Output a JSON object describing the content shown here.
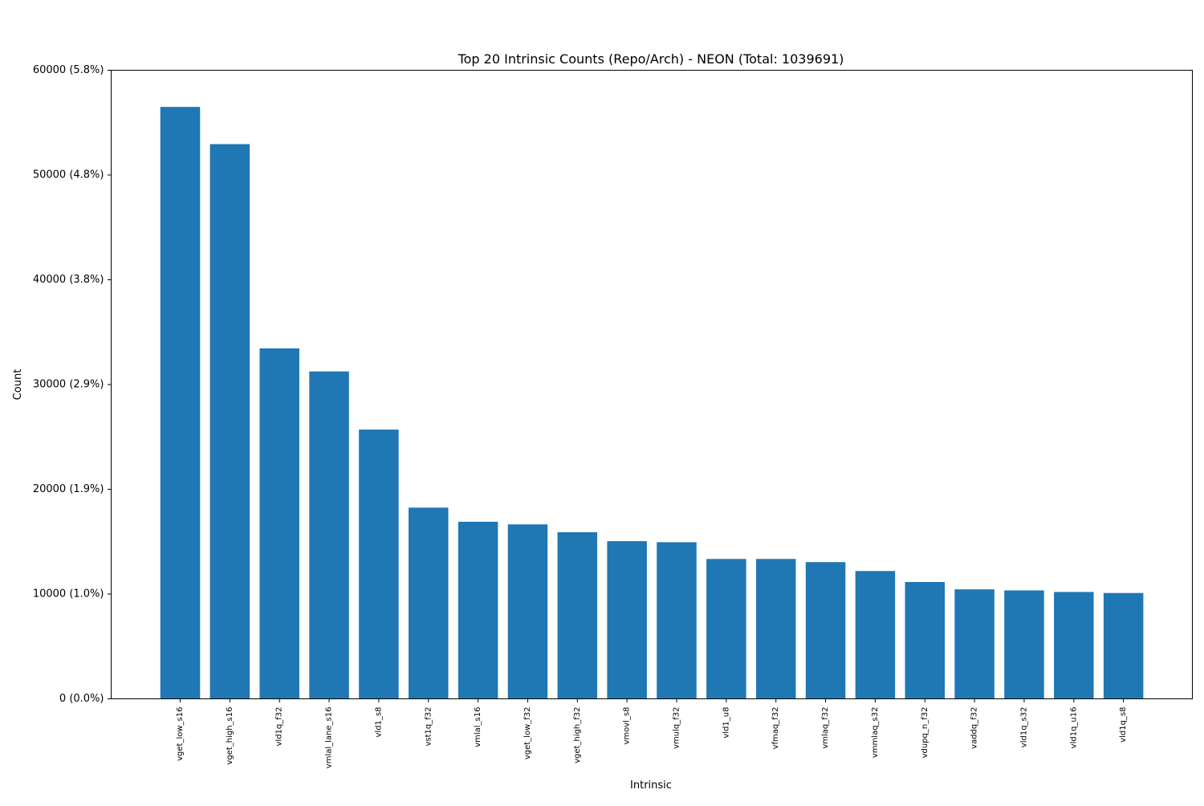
{
  "chart_data": {
    "type": "bar",
    "title": "Top 20 Intrinsic Counts (Repo/Arch) - NEON (Total: 1039691)",
    "xlabel": "Intrinsic",
    "ylabel": "Count",
    "ylim": [
      0,
      60000
    ],
    "yticks": [
      0,
      10000,
      20000,
      30000,
      40000,
      50000,
      60000
    ],
    "ytick_labels": [
      "0 (0.0%)",
      "10000 (1.0%)",
      "20000 (1.9%)",
      "30000 (2.9%)",
      "40000 (3.8%)",
      "50000 (4.8%)",
      "60000 (5.8%)"
    ],
    "categories": [
      "vget_low_s16",
      "vget_high_s16",
      "vld1q_f32",
      "vmlal_lane_s16",
      "vld1_s8",
      "vst1q_f32",
      "vmlal_s16",
      "vget_low_f32",
      "vget_high_f32",
      "vmovl_s8",
      "vmulq_f32",
      "vld1_u8",
      "vfmaq_f32",
      "vmlaq_f32",
      "vmmlaq_s32",
      "vdupq_n_f32",
      "vaddq_f32",
      "vld1q_s32",
      "vld1q_u16",
      "vld1q_s8"
    ],
    "values": [
      56500,
      52950,
      33450,
      31250,
      25700,
      18250,
      16900,
      16650,
      15900,
      15050,
      14950,
      13350,
      13350,
      13050,
      12200,
      11150,
      10450,
      10350,
      10200,
      10100
    ],
    "bar_color": "#1f77b4",
    "grid": false,
    "legend": "none"
  }
}
